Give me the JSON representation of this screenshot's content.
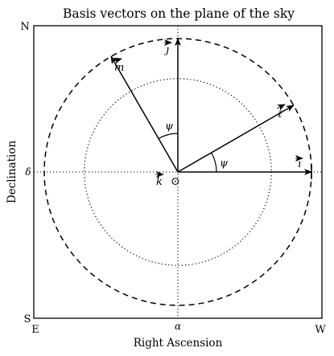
{
  "title": "Basis vectors on the plane of the sky",
  "axes": {
    "xlabel": "Right Ascension",
    "ylabel": "Declination",
    "x_tick": "α",
    "y_tick": "δ"
  },
  "corners": {
    "north": "N",
    "south": "S",
    "east": "E",
    "west": "W"
  },
  "vectors": {
    "i": "ı",
    "j": "ȷ",
    "k": "k",
    "l": "ℓ",
    "m": "m"
  },
  "angle": {
    "symbol": "ψ",
    "degrees": 30
  },
  "observer_symbol": "⊙",
  "circles": {
    "outer_style": "dashed",
    "inner_style": "dotted",
    "inner_to_outer_ratio": 0.7
  }
}
